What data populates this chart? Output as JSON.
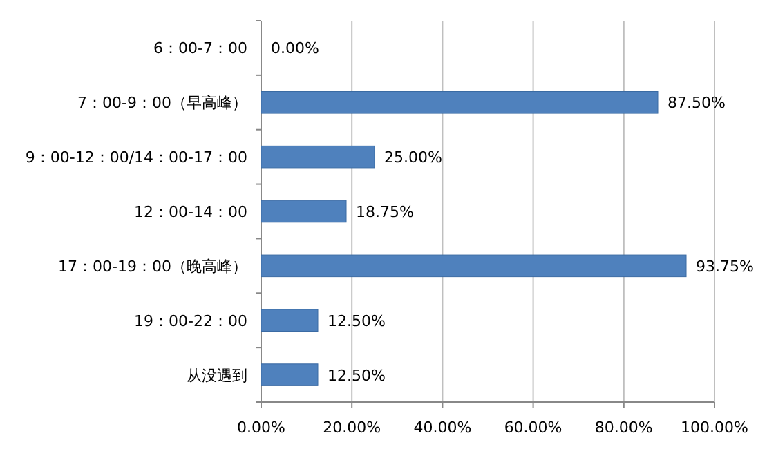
{
  "chart_data": {
    "type": "bar",
    "orientation": "horizontal",
    "categories": [
      "6：00-7：00",
      "7：00-9：00（早高峰）",
      "9：00-12：00/14：00-17：00",
      "12：00-14：00",
      "17：00-19：00（晚高峰）",
      "19：00-22：00",
      "从没遇到"
    ],
    "values": [
      0,
      87.5,
      25,
      18.75,
      93.75,
      12.5,
      12.5
    ],
    "value_labels": [
      "0.00%",
      "87.50%",
      "25.00%",
      "18.75%",
      "93.75%",
      "12.50%",
      "12.50%"
    ],
    "color": "#4f81bd",
    "xlim": [
      0,
      100
    ],
    "xticks": [
      {
        "value": 0,
        "label": "0.00%"
      },
      {
        "value": 20,
        "label": "20.00%"
      },
      {
        "value": 40,
        "label": "40.00%"
      },
      {
        "value": 60,
        "label": "60.00%"
      },
      {
        "value": 80,
        "label": "80.00%"
      },
      {
        "value": 100,
        "label": "100.00%"
      }
    ],
    "grid": "x"
  }
}
